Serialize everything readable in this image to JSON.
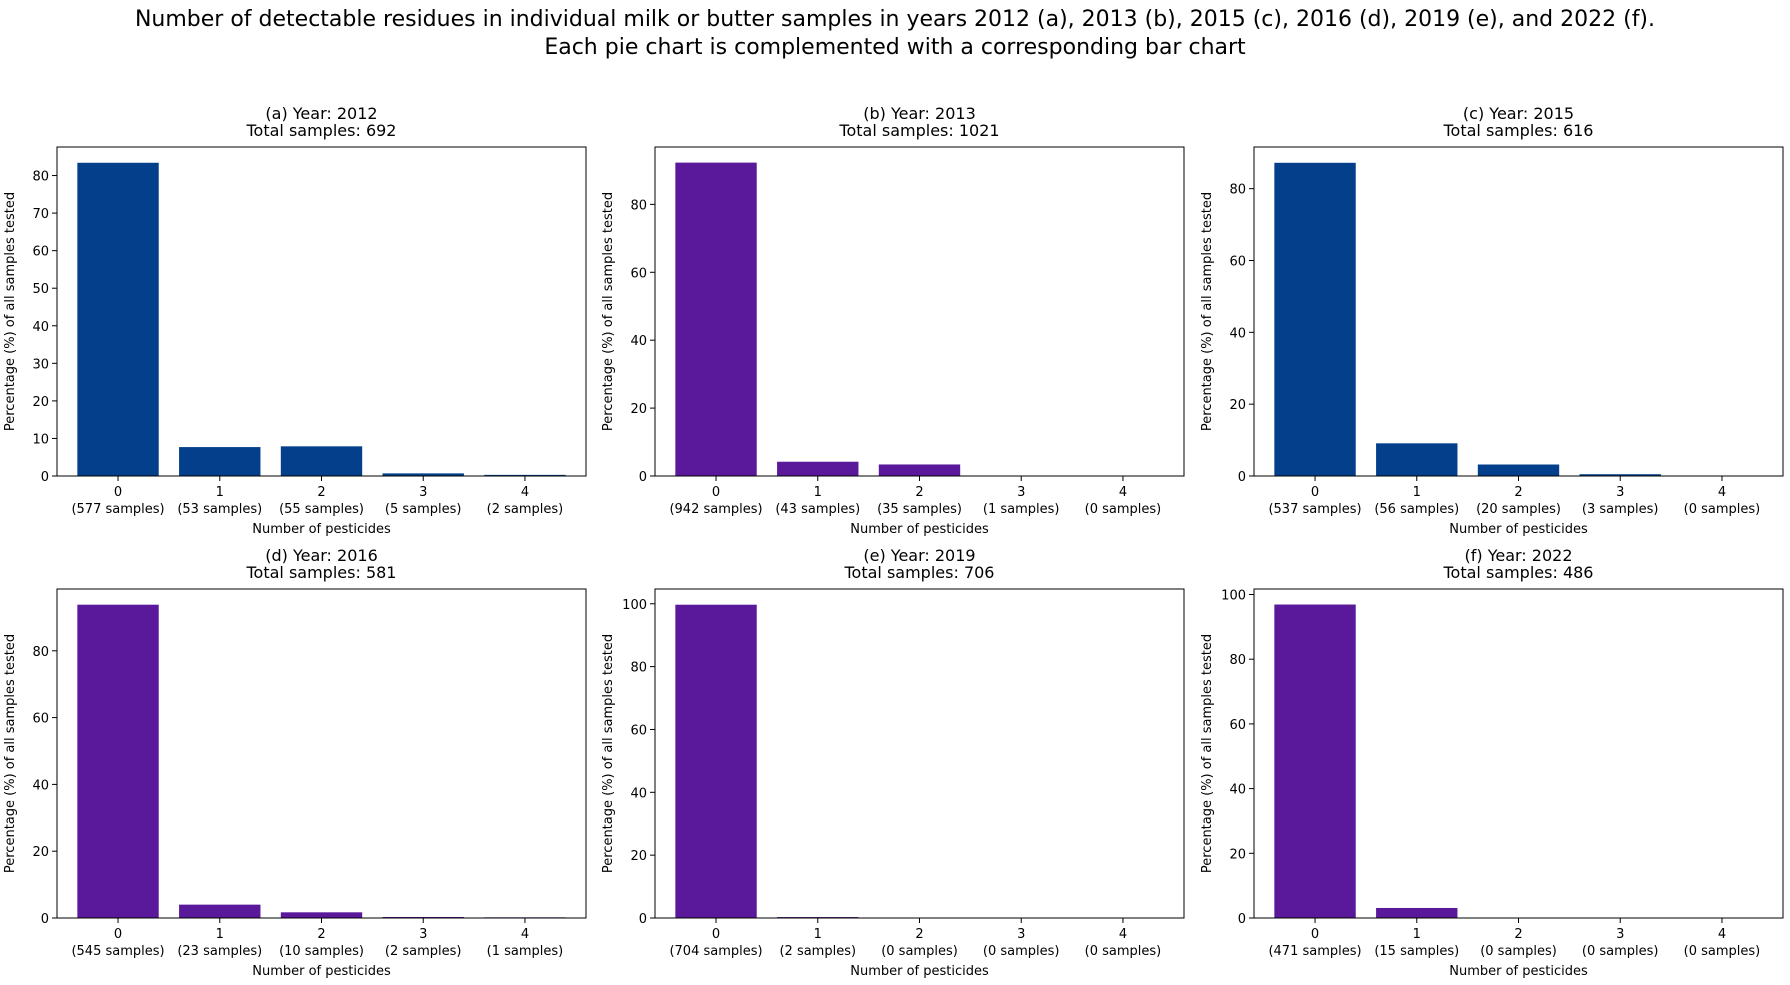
{
  "figure": {
    "title_line1": "Number of detectable residues in individual milk or butter samples in years 2012 (a), 2013 (b), 2015 (c), 2016 (d), 2019 (e), and 2022 (f).",
    "title_line2": "Each pie chart is complemented with a corresponding bar chart"
  },
  "chart_data": [
    {
      "type": "bar",
      "title": "(a) Year: 2012",
      "subtitle": "Total samples: 692",
      "xlabel": "Number of pesticides",
      "ylabel": "Percentage (%) of all samples tested",
      "categories": [
        "0",
        "1",
        "2",
        "3",
        "4"
      ],
      "sample_labels": [
        "(577 samples)",
        "(53 samples)",
        "(55 samples)",
        "(5 samples)",
        "(2 samples)"
      ],
      "values": [
        83.4,
        7.7,
        7.9,
        0.7,
        0.3
      ],
      "ylim": [
        0,
        87.6
      ],
      "yticks": [
        0,
        10,
        20,
        30,
        40,
        50,
        60,
        70,
        80
      ],
      "color": "#033f8a"
    },
    {
      "type": "bar",
      "title": "(b) Year: 2013",
      "subtitle": "Total samples: 1021",
      "xlabel": "Number of pesticides",
      "ylabel": "Percentage (%) of all samples tested",
      "categories": [
        "0",
        "1",
        "2",
        "3",
        "4"
      ],
      "sample_labels": [
        "(942 samples)",
        "(43 samples)",
        "(35 samples)",
        "(1 samples)",
        "(0 samples)"
      ],
      "values": [
        92.3,
        4.2,
        3.4,
        0.1,
        0.0
      ],
      "ylim": [
        0,
        96.9
      ],
      "yticks": [
        0,
        20,
        40,
        60,
        80
      ],
      "color": "#5a189a"
    },
    {
      "type": "bar",
      "title": "(c) Year: 2015",
      "subtitle": "Total samples: 616",
      "xlabel": "Number of pesticides",
      "ylabel": "Percentage (%) of all samples tested",
      "categories": [
        "0",
        "1",
        "2",
        "3",
        "4"
      ],
      "sample_labels": [
        "(537 samples)",
        "(56 samples)",
        "(20 samples)",
        "(3 samples)",
        "(0 samples)"
      ],
      "values": [
        87.2,
        9.1,
        3.2,
        0.5,
        0.0
      ],
      "ylim": [
        0,
        91.6
      ],
      "yticks": [
        0,
        20,
        40,
        60,
        80
      ],
      "color": "#033f8a"
    },
    {
      "type": "bar",
      "title": "(d) Year: 2016",
      "subtitle": "Total samples: 581",
      "xlabel": "Number of pesticides",
      "ylabel": "Percentage (%) of all samples tested",
      "categories": [
        "0",
        "1",
        "2",
        "3",
        "4"
      ],
      "sample_labels": [
        "(545 samples)",
        "(23 samples)",
        "(10 samples)",
        "(2 samples)",
        "(1 samples)"
      ],
      "values": [
        93.8,
        4.0,
        1.7,
        0.3,
        0.2
      ],
      "ylim": [
        0,
        98.5
      ],
      "yticks": [
        0,
        20,
        40,
        60,
        80
      ],
      "color": "#5a189a"
    },
    {
      "type": "bar",
      "title": "(e) Year: 2019",
      "subtitle": "Total samples: 706",
      "xlabel": "Number of pesticides",
      "ylabel": "Percentage (%) of all samples tested",
      "categories": [
        "0",
        "1",
        "2",
        "3",
        "4"
      ],
      "sample_labels": [
        "(704 samples)",
        "(2 samples)",
        "(0 samples)",
        "(0 samples)",
        "(0 samples)"
      ],
      "values": [
        99.7,
        0.3,
        0.0,
        0.0,
        0.0
      ],
      "ylim": [
        0,
        104.7
      ],
      "yticks": [
        0,
        20,
        40,
        60,
        80,
        100
      ],
      "color": "#5a189a"
    },
    {
      "type": "bar",
      "title": "(f) Year: 2022",
      "subtitle": "Total samples: 486",
      "xlabel": "Number of pesticides",
      "ylabel": "Percentage (%) of all samples tested",
      "categories": [
        "0",
        "1",
        "2",
        "3",
        "4"
      ],
      "sample_labels": [
        "(471 samples)",
        "(15 samples)",
        "(0 samples)",
        "(0 samples)",
        "(0 samples)"
      ],
      "values": [
        96.9,
        3.1,
        0.0,
        0.0,
        0.0
      ],
      "ylim": [
        0,
        101.7
      ],
      "yticks": [
        0,
        20,
        40,
        60,
        80,
        100
      ],
      "color": "#5a189a"
    }
  ]
}
